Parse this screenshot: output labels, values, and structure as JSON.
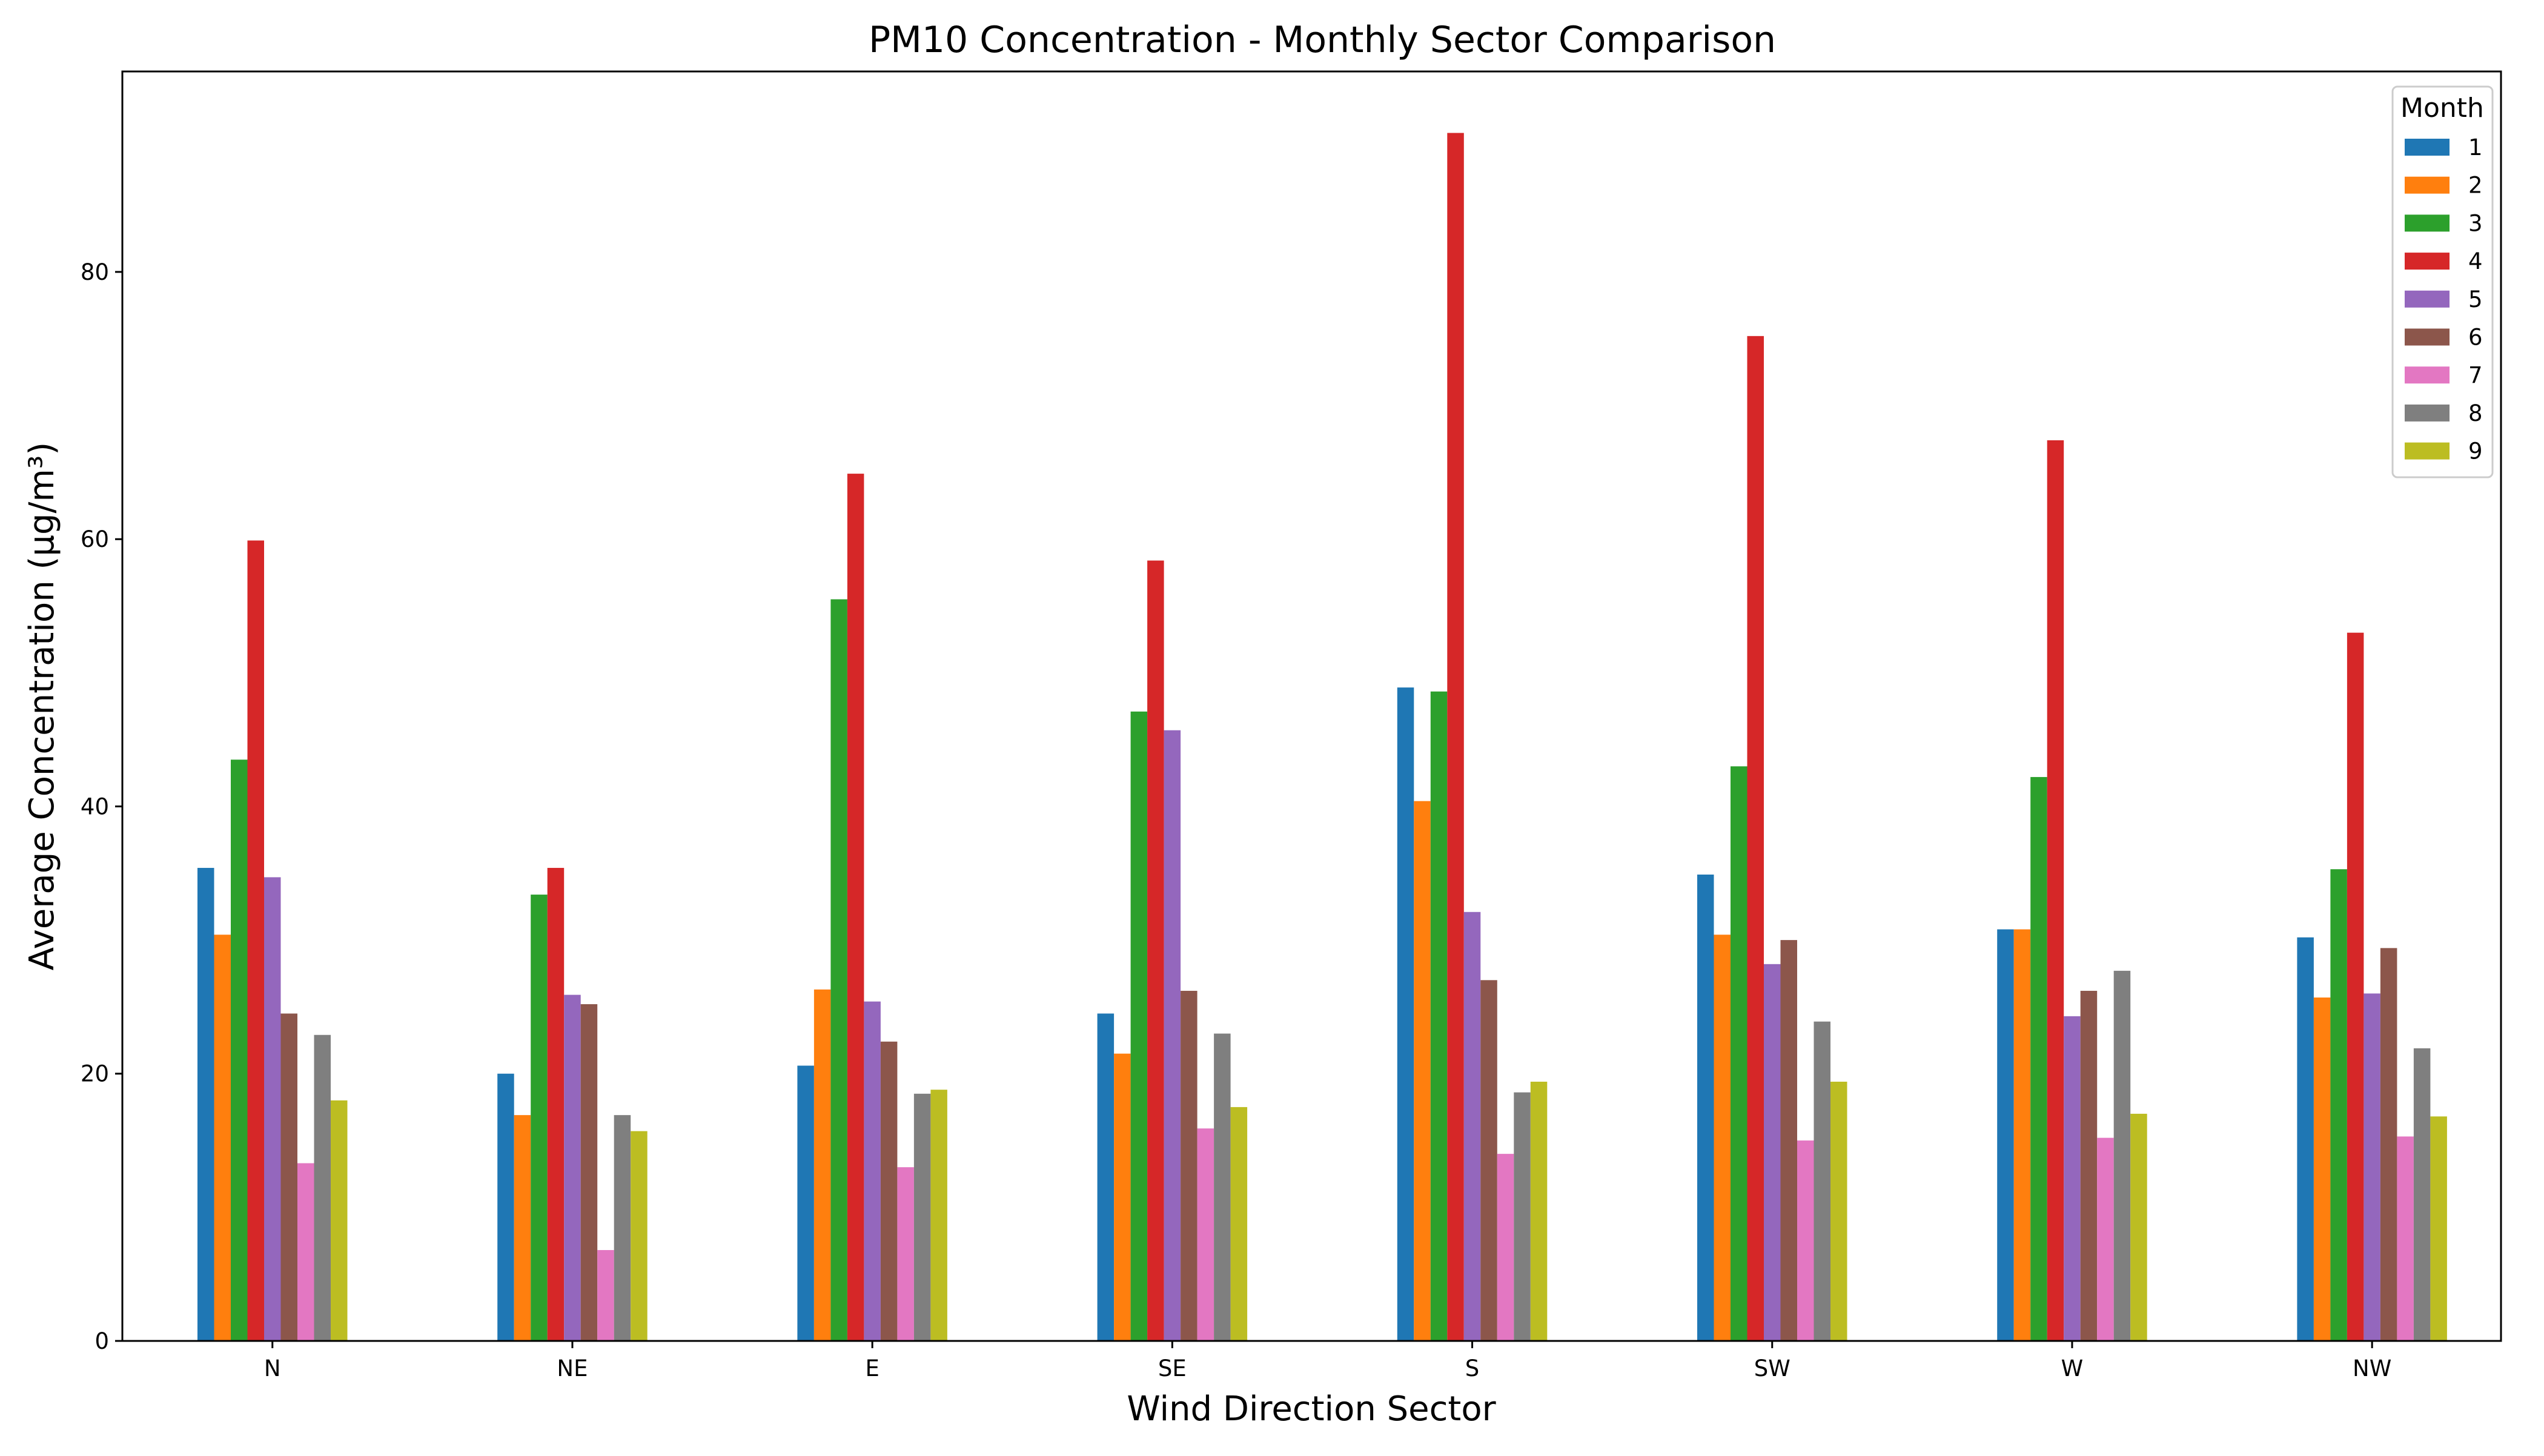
{
  "chart_data": {
    "type": "bar",
    "title": "PM10 Concentration - Monthly Sector Comparison",
    "xlabel": "Wind Direction Sector",
    "ylabel": "Average Concentration (μg/m³)",
    "ylim": [
      0,
      95
    ],
    "yticks": [
      0,
      20,
      40,
      60,
      80
    ],
    "grid": false,
    "legend": {
      "title": "Month",
      "placement": "top-right"
    },
    "categories": [
      "N",
      "NE",
      "E",
      "SE",
      "S",
      "SW",
      "W",
      "NW"
    ],
    "series": [
      {
        "name": "1",
        "color": "#1f77b4",
        "values": [
          35.4,
          20.0,
          20.6,
          24.5,
          48.9,
          34.9,
          30.8,
          30.2
        ]
      },
      {
        "name": "2",
        "color": "#ff7f0e",
        "values": [
          30.4,
          16.9,
          26.3,
          21.5,
          40.4,
          30.4,
          30.8,
          25.7
        ]
      },
      {
        "name": "3",
        "color": "#2ca02c",
        "values": [
          43.5,
          33.4,
          55.5,
          47.1,
          48.6,
          43.0,
          42.2,
          35.3
        ]
      },
      {
        "name": "4",
        "color": "#d62728",
        "values": [
          59.9,
          35.4,
          64.9,
          58.4,
          90.4,
          75.2,
          67.4,
          53.0
        ]
      },
      {
        "name": "5",
        "color": "#9467bd",
        "values": [
          34.7,
          25.9,
          25.4,
          45.7,
          32.1,
          28.2,
          24.3,
          26.0
        ]
      },
      {
        "name": "6",
        "color": "#8c564b",
        "values": [
          24.5,
          25.2,
          22.4,
          26.2,
          27.0,
          30.0,
          26.2,
          29.4
        ]
      },
      {
        "name": "7",
        "color": "#e377c2",
        "values": [
          13.3,
          6.8,
          13.0,
          15.9,
          14.0,
          15.0,
          15.2,
          15.3
        ]
      },
      {
        "name": "8",
        "color": "#7f7f7f",
        "values": [
          22.9,
          16.9,
          18.5,
          23.0,
          18.6,
          23.9,
          27.7,
          21.9
        ]
      },
      {
        "name": "9",
        "color": "#bcbd22",
        "values": [
          18.0,
          15.7,
          18.8,
          17.5,
          19.4,
          19.4,
          17.0,
          16.8
        ]
      }
    ]
  }
}
